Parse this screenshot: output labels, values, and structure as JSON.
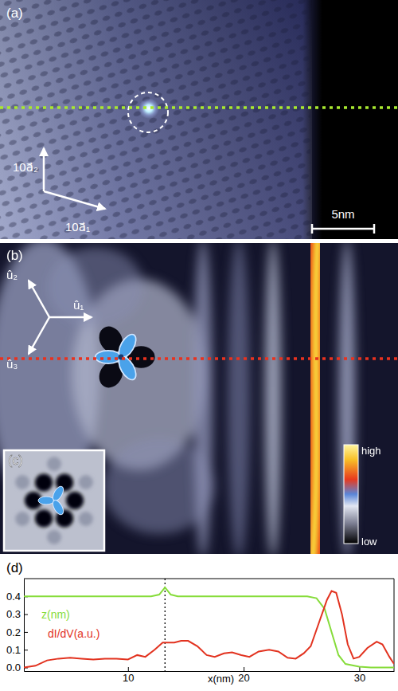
{
  "image_a": {
    "label": "(a)",
    "vectors": [
      "10a⃗₁",
      "10a⃗₂"
    ],
    "scale_bar": "5nm"
  },
  "image_b": {
    "label": "(b)",
    "vectors": [
      "û₁",
      "û₂",
      "û₃"
    ],
    "colorbar": [
      "high",
      "low"
    ]
  },
  "image_c": {
    "label": "(c)"
  },
  "chart_data": {
    "type": "line",
    "label": "(d)",
    "xlabel": "x(nm)",
    "xlim": [
      1,
      33
    ],
    "xticks": [
      10,
      20,
      30
    ],
    "ylim": [
      -0.02,
      0.5
    ],
    "yticks": [
      {
        "value": 0,
        "label": "0.0"
      },
      0.1,
      0.2,
      0.3,
      0.4
    ],
    "vline": 13.2,
    "series": [
      {
        "name": "z(nm)",
        "color": "#86dc3a",
        "x": [
          1,
          12,
          12.7,
          13.2,
          13.7,
          14.3,
          25.5,
          26.3,
          27,
          27.6,
          28.2,
          28.8,
          30,
          31,
          33
        ],
        "values": [
          0.4,
          0.4,
          0.41,
          0.45,
          0.41,
          0.4,
          0.4,
          0.39,
          0.33,
          0.2,
          0.07,
          0.02,
          0.005,
          0,
          0
        ]
      },
      {
        "name": "dI/dV(a.u.)",
        "color": "#e2321f",
        "x": [
          1,
          2,
          3,
          4,
          5,
          6,
          7,
          8,
          9,
          10,
          10.8,
          11.5,
          12.3,
          13,
          14,
          14.6,
          15.2,
          16,
          16.8,
          17.5,
          18.3,
          19,
          19.8,
          20.5,
          21.3,
          22.2,
          23,
          23.8,
          24.5,
          25.2,
          25.8,
          26.5,
          27.2,
          27.6,
          28,
          28.5,
          29,
          29.5,
          30,
          30.7,
          31.5,
          32,
          32.6,
          33
        ],
        "values": [
          0,
          0.01,
          0.04,
          0.05,
          0.055,
          0.05,
          0.045,
          0.05,
          0.05,
          0.045,
          0.07,
          0.06,
          0.1,
          0.14,
          0.14,
          0.15,
          0.15,
          0.12,
          0.07,
          0.06,
          0.08,
          0.085,
          0.07,
          0.06,
          0.09,
          0.1,
          0.09,
          0.055,
          0.05,
          0.08,
          0.12,
          0.25,
          0.38,
          0.43,
          0.42,
          0.3,
          0.13,
          0.05,
          0.06,
          0.11,
          0.145,
          0.13,
          0.06,
          0.02
        ]
      }
    ]
  }
}
